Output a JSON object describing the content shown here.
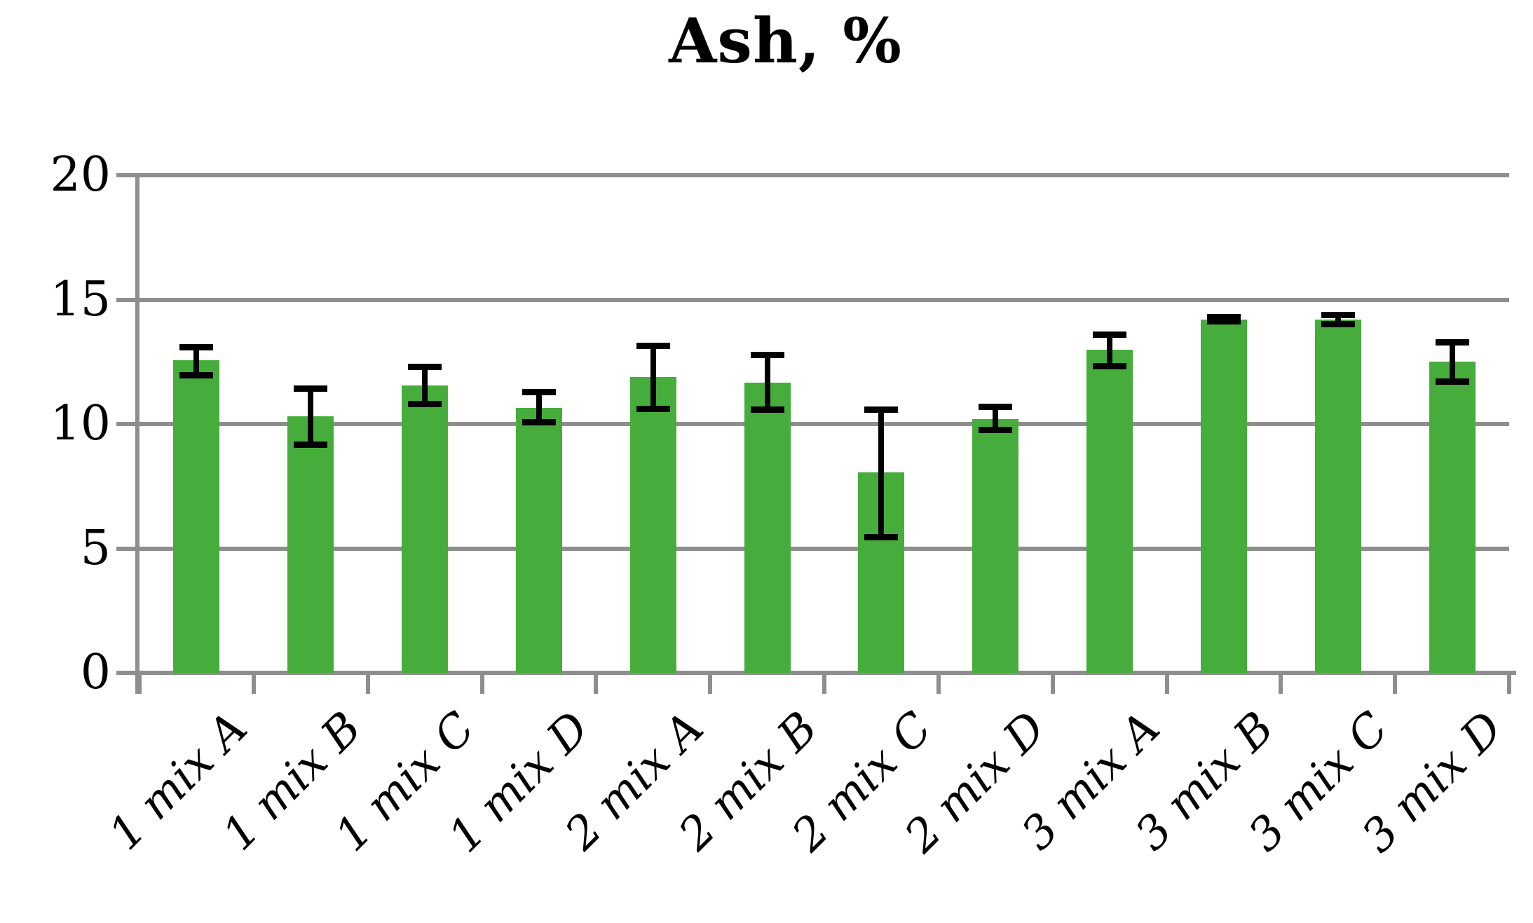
{
  "chart_data": {
    "type": "bar",
    "title": "Ash, %",
    "categories": [
      "1 mix A",
      "1 mix B",
      "1 mix C",
      "1 mix D",
      "2 mix A",
      "2 mix B",
      "2 mix C",
      "2 mix D",
      "3 mix A",
      "3 mix B",
      "3 mix C",
      "3 mix D"
    ],
    "values": [
      12.55,
      10.3,
      11.55,
      10.65,
      11.9,
      11.65,
      8.05,
      10.2,
      13.0,
      14.2,
      14.2,
      12.5
    ],
    "error_high": [
      13.1,
      11.45,
      12.3,
      11.3,
      13.15,
      12.8,
      10.6,
      10.7,
      13.6,
      14.3,
      14.4,
      13.3
    ],
    "error_low": [
      11.95,
      9.15,
      10.8,
      10.05,
      10.6,
      10.55,
      5.45,
      9.75,
      12.3,
      14.1,
      14.0,
      11.7
    ],
    "xlabel": "",
    "ylabel": "",
    "ylim": [
      0,
      20
    ],
    "yticks": [
      0,
      5,
      10,
      15,
      20
    ],
    "ytick_labels": [
      "0",
      "5",
      "10",
      "15",
      "20"
    ],
    "grid": "horizontal",
    "legend": "none",
    "bar_color": "#46AD3C",
    "grid_color": "#8E8E8E",
    "error_color": "#000000",
    "background_color": "#FFFFFF"
  }
}
